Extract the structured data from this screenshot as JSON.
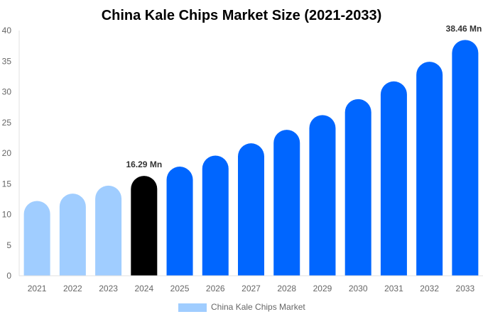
{
  "chart_data": {
    "type": "bar",
    "title": "China Kale Chips Market Size (2021-2033)",
    "categories": [
      "2021",
      "2022",
      "2023",
      "2024",
      "2025",
      "2026",
      "2027",
      "2028",
      "2029",
      "2030",
      "2031",
      "2032",
      "2033"
    ],
    "series": [
      {
        "name": "China Kale Chips Market",
        "values": [
          12.2,
          13.4,
          14.7,
          16.29,
          17.8,
          19.6,
          21.6,
          23.8,
          26.2,
          28.8,
          31.7,
          34.9,
          38.46
        ]
      }
    ],
    "data_labels": {
      "3": "16.29 Mn",
      "12": "38.46 Mn"
    },
    "ylim": [
      0,
      40
    ],
    "yticks": [
      0,
      5,
      10,
      15,
      20,
      25,
      30,
      35,
      40
    ],
    "grid": false,
    "legend": "bottom",
    "colors": {
      "historical": "#a0cdff",
      "current": "#000000",
      "forecast": "#0066ff"
    }
  }
}
